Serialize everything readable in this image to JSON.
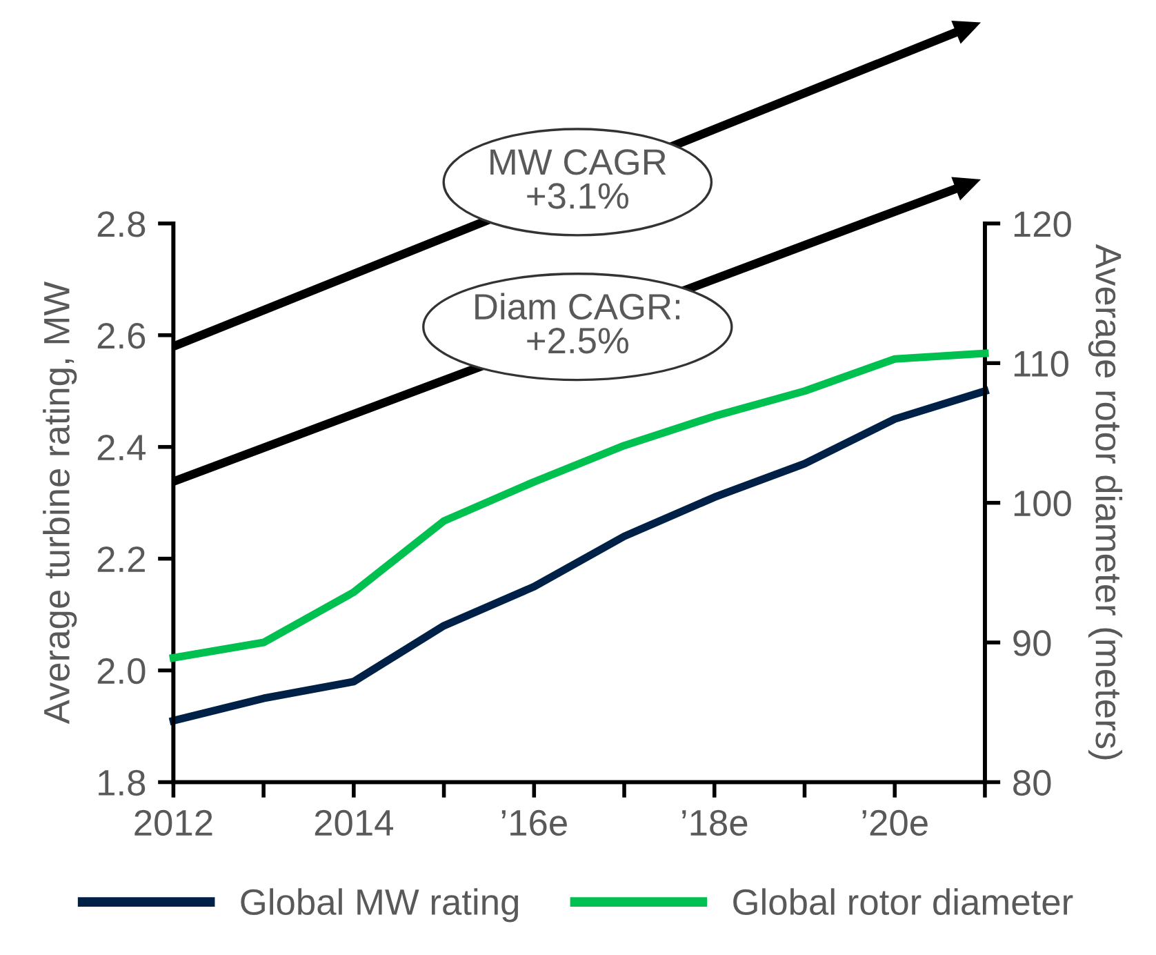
{
  "chart_data": {
    "type": "line",
    "categories": [
      "2012",
      null,
      "2014",
      null,
      "’16e",
      null,
      "’18e",
      null,
      "’20e",
      null
    ],
    "ylabel": "Average turbine rating, MW",
    "y2label": "Average rotor diameter (meters)",
    "ylim": [
      1.8,
      2.8
    ],
    "yticks": [
      {
        "value": 1.8,
        "label": "1.8"
      },
      {
        "value": 2.0,
        "label": "2.0"
      },
      {
        "value": 2.2,
        "label": "2.2"
      },
      {
        "value": 2.4,
        "label": "2.4"
      },
      {
        "value": 2.6,
        "label": "2.6"
      },
      {
        "value": 2.8,
        "label": "2.8"
      }
    ],
    "y2lim": [
      80,
      120
    ],
    "y2ticks": [
      80,
      90,
      100,
      110,
      120
    ],
    "series": [
      {
        "name": "Global MW rating",
        "color": "#002147",
        "values": [
          1.91,
          1.95,
          1.98,
          2.08,
          2.15,
          2.24,
          2.31,
          2.37,
          2.45,
          2.5
        ]
      },
      {
        "name": "Global rotor diameter",
        "color": "#00c050",
        "axis": "y2",
        "values": [
          88.9,
          90.0,
          93.6,
          98.7,
          101.5,
          104.1,
          106.2,
          108.0,
          110.3,
          110.7
        ]
      }
    ],
    "annotations": [
      "MW CAGR\n+3.1%",
      "Diam CAGR:\n+2.5%"
    ],
    "legend": "bottom",
    "grid": false,
    "marker": "none",
    "line_style": "solid"
  }
}
